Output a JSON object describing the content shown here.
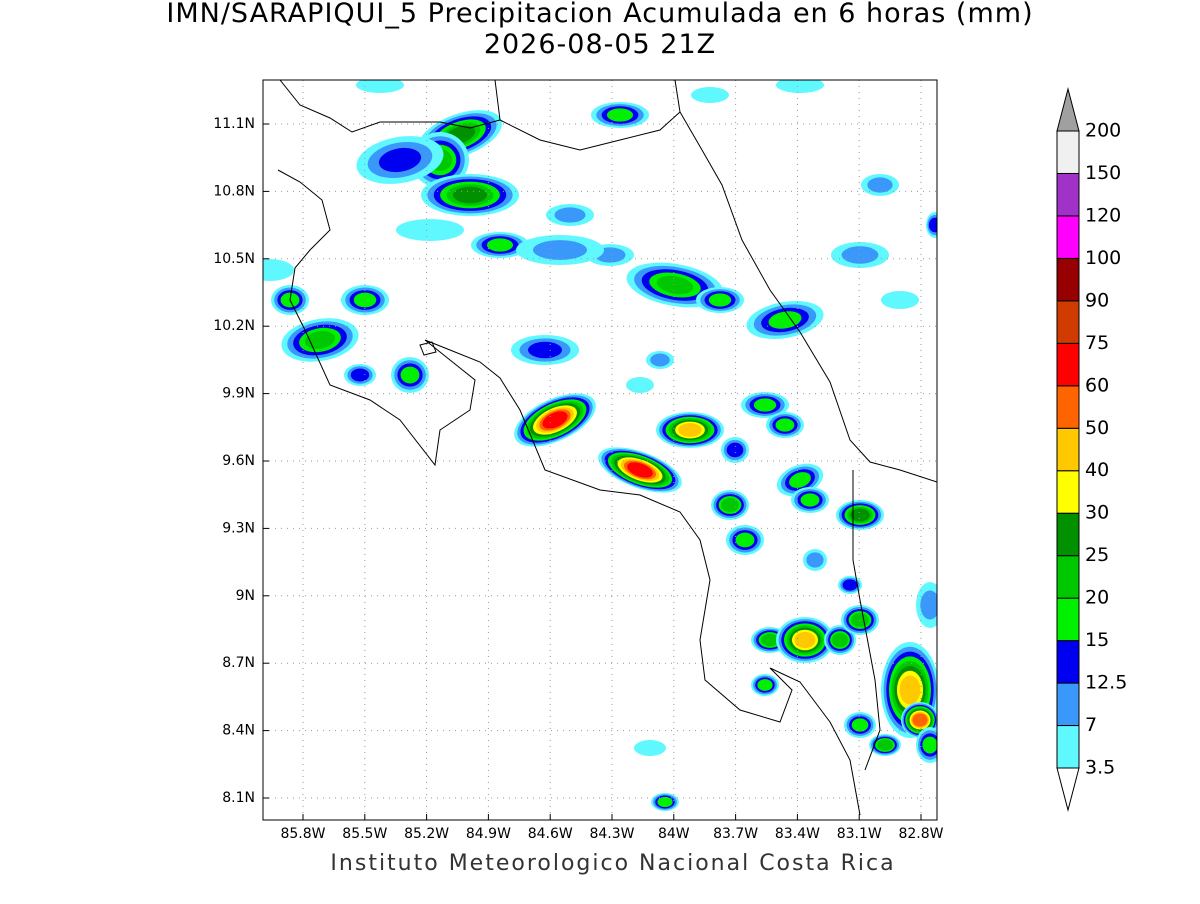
{
  "title": [
    "IMN/SARAPIQUI_5 Precipitacion Acumulada en 6 horas (mm)",
    "2026-08-05 21Z"
  ],
  "lat_ticks": [
    "11.1N",
    "10.8N",
    "10.5N",
    "10.2N",
    "9.9N",
    "9.6N",
    "9.3N",
    "9N",
    "8.7N",
    "8.4N",
    "8.1N"
  ],
  "lon_ticks": [
    "85.8W",
    "85.5W",
    "85.2W",
    "84.9W",
    "84.6W",
    "84.3W",
    "84W",
    "83.7W",
    "83.4W",
    "83.1W",
    "82.8W"
  ],
  "colorbar": {
    "labels": [
      "3.5",
      "7",
      "12.5",
      "15",
      "20",
      "25",
      "30",
      "40",
      "50",
      "60",
      "75",
      "90",
      "100",
      "120",
      "150",
      "200"
    ],
    "colors": [
      "#60f8ff",
      "#3a98fa",
      "#0000f0",
      "#00f000",
      "#00c800",
      "#009000",
      "#ffff00",
      "#ffc800",
      "#ff6400",
      "#ff0000",
      "#d03c00",
      "#960000",
      "#ff00ff",
      "#a032c8",
      "#f0f0f0"
    ],
    "over_color": "#a0a0a0",
    "under_color": "#ffffff"
  },
  "footer": "Instituto Meteorologico Nacional Costa Rica"
}
